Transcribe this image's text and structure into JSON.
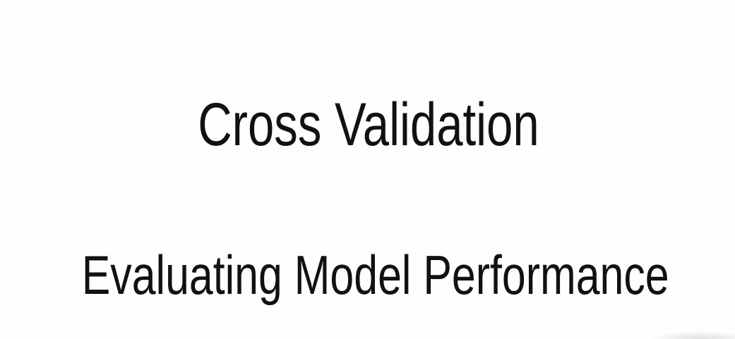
{
  "slide": {
    "title": "Cross Validation",
    "subtitle": "Evaluating Model Performance"
  },
  "colors": {
    "background": "#fefefe",
    "text": "#111111"
  }
}
